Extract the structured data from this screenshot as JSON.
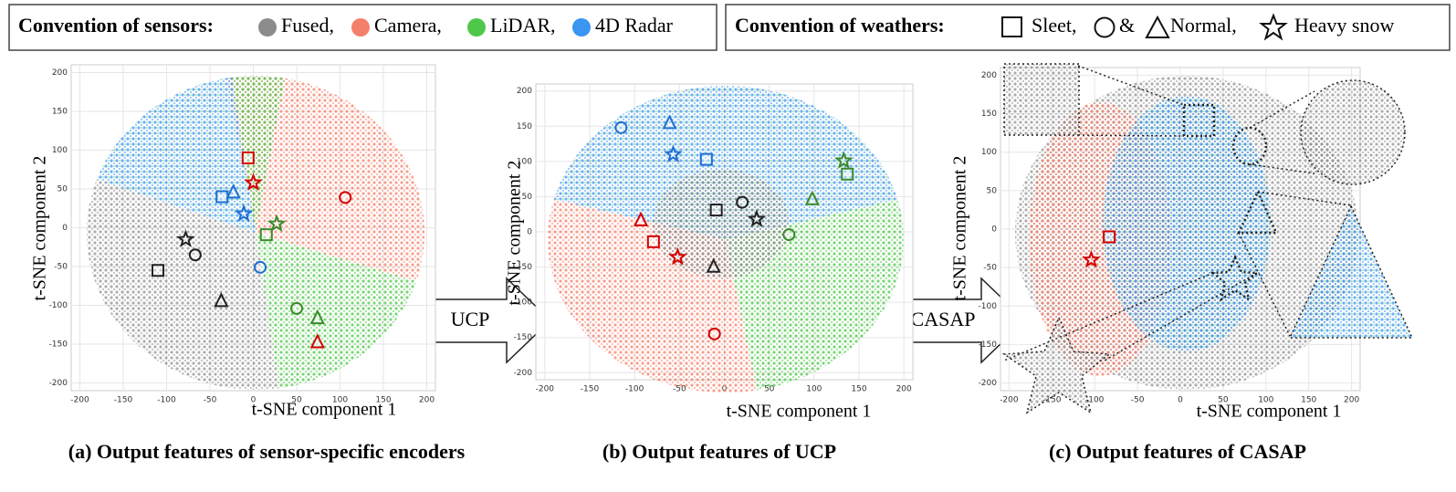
{
  "legends": {
    "sensors": {
      "title": "Convention of sensors:",
      "items": [
        {
          "label": "Fused,",
          "color": "#8c8c8c"
        },
        {
          "label": "Camera,",
          "color": "#f4806c"
        },
        {
          "label": "LiDAR,",
          "color": "#4fc84a"
        },
        {
          "label": "4D Radar",
          "color": "#3a96f0"
        }
      ]
    },
    "weathers": {
      "title": "Convention of weathers:",
      "items": [
        "Sleet,",
        "&",
        "Normal,",
        "Heavy snow"
      ]
    }
  },
  "arrows": [
    "UCP",
    "CASAP"
  ],
  "chart_data": [
    {
      "type": "scatter",
      "caption": "(a) Output features of sensor-specific encoders",
      "x_label": "t-SNE component 1",
      "y_label": "t-SNE component 2",
      "xlim": [
        -210,
        210
      ],
      "ylim": [
        -210,
        210
      ],
      "xticks": [
        -200,
        -150,
        -100,
        -50,
        0,
        50,
        100,
        150,
        200
      ],
      "yticks": [
        -200,
        -150,
        -100,
        -50,
        0,
        50,
        100,
        150,
        200
      ],
      "grid": true,
      "series": [
        {
          "color": "#222222",
          "x": [
            -110,
            -67,
            -37,
            -78
          ],
          "values": [
            -55,
            -35,
            -94,
            -15
          ],
          "markers": [
            "square",
            "circle",
            "triangle",
            "star"
          ]
        },
        {
          "color": "#d40000",
          "x": [
            -6,
            106,
            74,
            0
          ],
          "values": [
            90,
            39,
            -147,
            58
          ],
          "markers": [
            "square",
            "circle",
            "triangle",
            "star"
          ]
        },
        {
          "color": "#3a8a2a",
          "x": [
            15,
            50,
            74,
            27
          ],
          "values": [
            -9,
            -104,
            -116,
            5
          ],
          "markers": [
            "square",
            "circle",
            "triangle",
            "star"
          ]
        },
        {
          "color": "#1e6fd0",
          "x": [
            -36,
            8,
            -23,
            -11
          ],
          "values": [
            40,
            -51,
            46,
            18
          ],
          "markers": [
            "square",
            "circle",
            "triangle",
            "star"
          ]
        }
      ]
    },
    {
      "type": "scatter",
      "caption": "(b) Output features of UCP",
      "x_label": "t-SNE component 1",
      "y_label": "t-SNE component 2",
      "xlim": [
        -210,
        210
      ],
      "ylim": [
        -210,
        210
      ],
      "xticks": [
        -200,
        -150,
        -100,
        -50,
        0,
        50,
        100,
        150,
        200
      ],
      "yticks": [
        -200,
        -150,
        -100,
        -50,
        0,
        50,
        100,
        150,
        200
      ],
      "grid": true,
      "series": [
        {
          "color": "#222222",
          "x": [
            -9,
            20,
            -12,
            36
          ],
          "values": [
            31,
            42,
            -49,
            18
          ],
          "markers": [
            "square",
            "circle",
            "triangle",
            "star"
          ]
        },
        {
          "color": "#d40000",
          "x": [
            -79,
            -11,
            -93,
            -52
          ],
          "values": [
            -14,
            -145,
            17,
            -36
          ],
          "markers": [
            "square",
            "circle",
            "triangle",
            "star"
          ]
        },
        {
          "color": "#3a8a2a",
          "x": [
            137,
            72,
            98,
            133
          ],
          "values": [
            82,
            -4,
            47,
            101
          ],
          "markers": [
            "square",
            "circle",
            "triangle",
            "star"
          ]
        },
        {
          "color": "#1e6fd0",
          "x": [
            -20,
            -115,
            -61,
            -57
          ],
          "values": [
            103,
            148,
            155,
            110
          ],
          "markers": [
            "square",
            "circle",
            "triangle",
            "star"
          ]
        }
      ]
    },
    {
      "type": "scatter",
      "caption": "(c) Output features of CASAP",
      "x_label": "t-SNE component 1",
      "y_label": "t-SNE component 2",
      "xlim": [
        -210,
        210
      ],
      "ylim": [
        -210,
        210
      ],
      "xticks": [
        -200,
        -150,
        -100,
        -50,
        0,
        50,
        100,
        150,
        200
      ],
      "yticks": [
        -200,
        -150,
        -100,
        -50,
        0,
        50,
        100,
        150,
        200
      ],
      "grid": true,
      "series": [
        {
          "color": "#d40000",
          "x": [
            -83,
            -104
          ],
          "values": [
            -10,
            -40
          ],
          "markers": [
            "square",
            "star"
          ]
        }
      ]
    }
  ]
}
